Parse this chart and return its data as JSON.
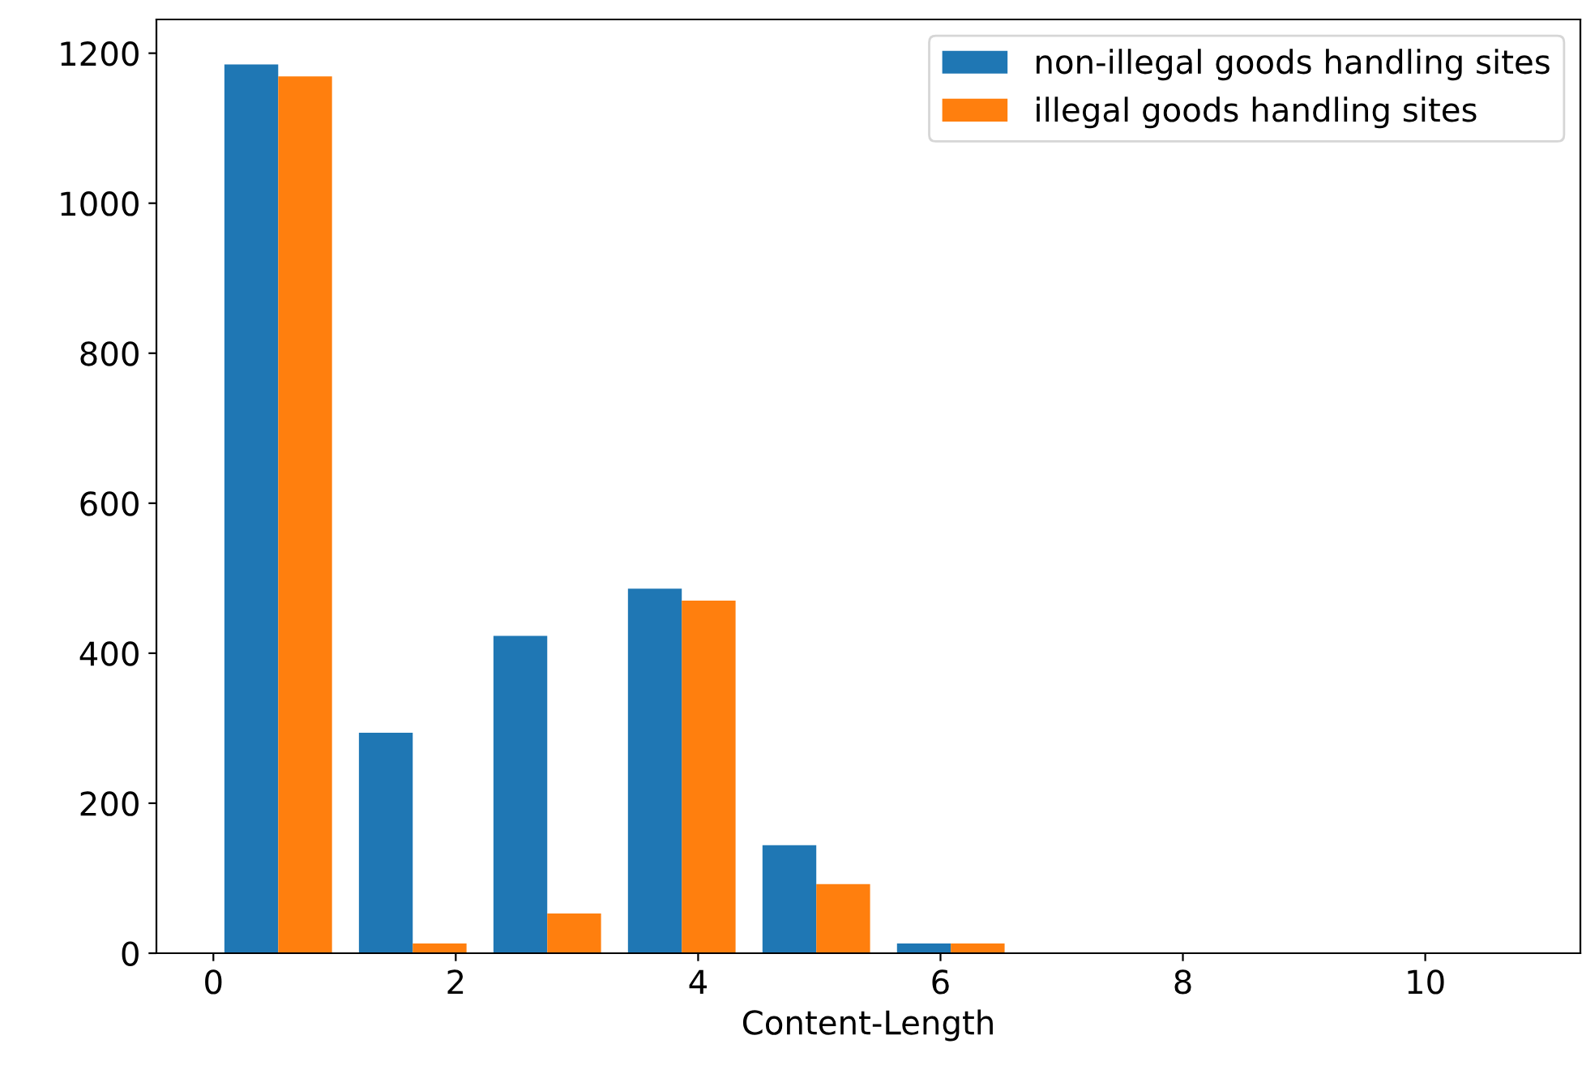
{
  "chart_data": {
    "type": "histogram",
    "xlabel": "Content-Length",
    "bins": [
      -0.02,
      1.09,
      2.2,
      3.31,
      4.42,
      5.53,
      6.64,
      7.75,
      8.86,
      9.97,
      11.08
    ],
    "series": [
      {
        "name": "non-illegal goods handling sites",
        "color": "#1f77b4",
        "values": [
          1185,
          294,
          423,
          486,
          144,
          13,
          0,
          0,
          0,
          0
        ]
      },
      {
        "name": "illegal goods handling sites",
        "color": "#ff7f0e",
        "values": [
          1169,
          13,
          53,
          470,
          92,
          13,
          0,
          0,
          0,
          0
        ]
      }
    ],
    "xlim": [
      -0.47,
      11.28
    ],
    "xticks": [
      0,
      2,
      4,
      6,
      8,
      10
    ],
    "ylim": [
      0,
      1245
    ],
    "yticks": [
      0,
      200,
      400,
      600,
      800,
      1000,
      1200
    ],
    "legend": "top right",
    "grid": false
  }
}
